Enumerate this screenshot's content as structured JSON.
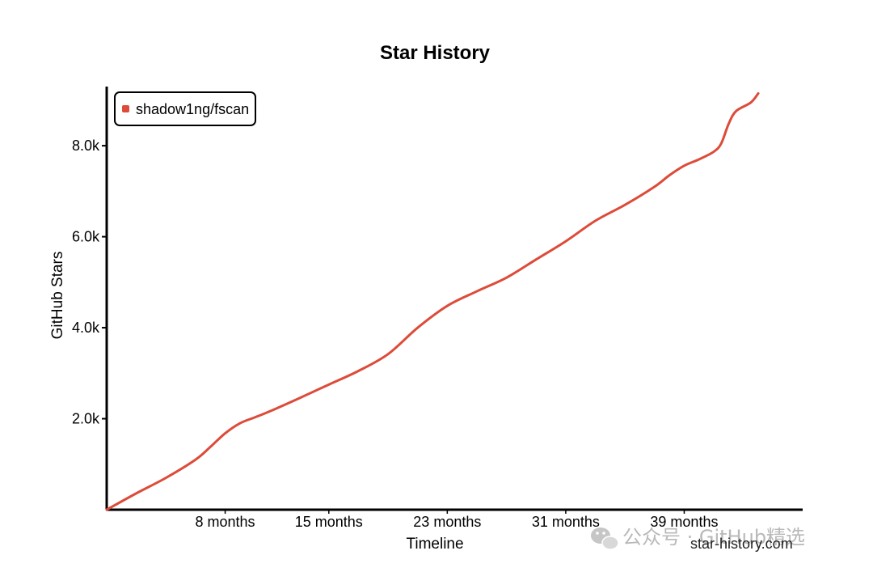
{
  "chart_data": {
    "type": "line",
    "title": "Star History",
    "xlabel": "Timeline",
    "ylabel": "GitHub Stars",
    "x_unit": "months",
    "xlim": [
      0,
      47
    ],
    "ylim": [
      0,
      9300
    ],
    "x_ticks": [
      {
        "value": 8,
        "label": "8 months"
      },
      {
        "value": 15,
        "label": "15 months"
      },
      {
        "value": 23,
        "label": "23 months"
      },
      {
        "value": 31,
        "label": "31 months"
      },
      {
        "value": 39,
        "label": "39 months"
      }
    ],
    "y_ticks": [
      {
        "value": 2000,
        "label": "2.0k"
      },
      {
        "value": 4000,
        "label": "4.0k"
      },
      {
        "value": 6000,
        "label": "6.0k"
      },
      {
        "value": 8000,
        "label": "8.0k"
      }
    ],
    "grid": false,
    "legend_position": "top-left",
    "series": [
      {
        "name": "shadow1ng/fscan",
        "color": "#dd4b39",
        "points": [
          [
            0,
            0
          ],
          [
            2,
            360
          ],
          [
            4,
            700
          ],
          [
            6,
            1100
          ],
          [
            7,
            1380
          ],
          [
            8,
            1680
          ],
          [
            9,
            1900
          ],
          [
            10,
            2030
          ],
          [
            11,
            2160
          ],
          [
            13,
            2450
          ],
          [
            15,
            2750
          ],
          [
            17,
            3050
          ],
          [
            19,
            3420
          ],
          [
            21,
            4000
          ],
          [
            23,
            4480
          ],
          [
            25,
            4800
          ],
          [
            27,
            5100
          ],
          [
            29,
            5500
          ],
          [
            31,
            5900
          ],
          [
            33,
            6350
          ],
          [
            35,
            6700
          ],
          [
            37,
            7100
          ],
          [
            38,
            7350
          ],
          [
            39,
            7560
          ],
          [
            40,
            7700
          ],
          [
            41,
            7870
          ],
          [
            41.5,
            8050
          ],
          [
            42,
            8480
          ],
          [
            42.5,
            8760
          ],
          [
            43.5,
            8950
          ],
          [
            44,
            9150
          ]
        ]
      }
    ]
  },
  "watermark": {
    "text": "公众号 · GitHub精选",
    "icon": "wechat-icon"
  },
  "site": {
    "text": "star-history.com"
  }
}
